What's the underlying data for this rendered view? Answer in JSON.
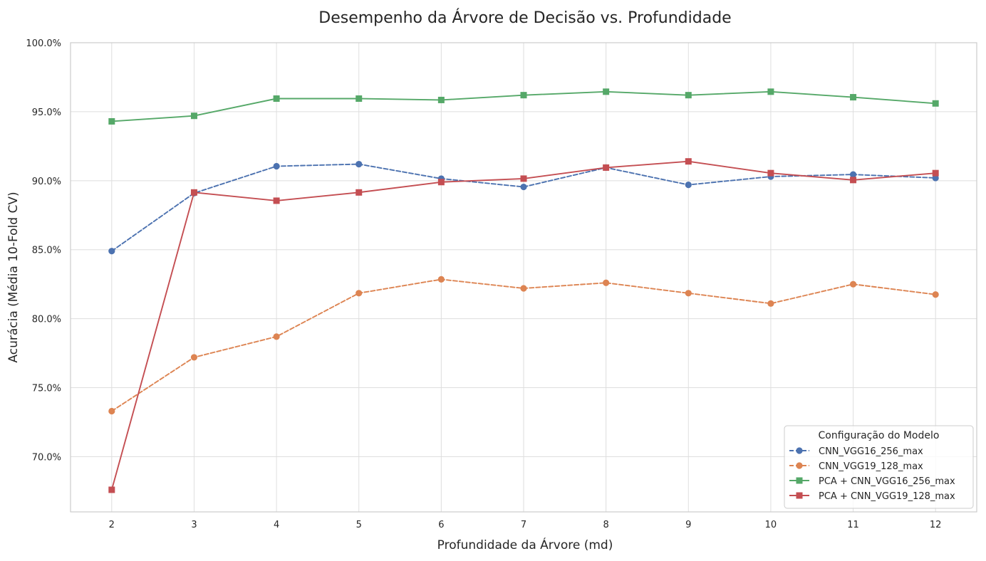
{
  "chart_data": {
    "type": "line",
    "title": "Desempenho da Árvore de Decisão vs. Profundidade",
    "xlabel": "Profundidade da Árvore (md)",
    "ylabel": "Acurácia (Média 10-Fold CV)",
    "x": [
      2,
      3,
      4,
      5,
      6,
      7,
      8,
      9,
      10,
      11,
      12
    ],
    "xlim": [
      1.5,
      12.5
    ],
    "ylim": [
      66.0,
      100.0
    ],
    "x_tick_labels": [
      "2",
      "3",
      "4",
      "5",
      "6",
      "7",
      "8",
      "9",
      "10",
      "11",
      "12"
    ],
    "y_ticks": [
      70,
      75,
      80,
      85,
      90,
      95,
      100
    ],
    "y_tick_labels": [
      "70.0%",
      "75.0%",
      "80.0%",
      "85.0%",
      "90.0%",
      "95.0%",
      "100.0%"
    ],
    "grid": true,
    "legend": {
      "title": "Configuração do Modelo",
      "placement": "lower right"
    },
    "series": [
      {
        "name": "CNN_VGG16_256_max",
        "color": "#4c72b0",
        "line_style": "dashed",
        "marker": "circle",
        "values": [
          84.9,
          89.1,
          91.05,
          91.2,
          90.15,
          89.55,
          90.95,
          89.7,
          90.3,
          90.45,
          90.2
        ]
      },
      {
        "name": "CNN_VGG19_128_max",
        "color": "#dd8452",
        "line_style": "dashed",
        "marker": "circle",
        "values": [
          73.3,
          77.2,
          78.7,
          81.85,
          82.85,
          82.2,
          82.6,
          81.85,
          81.1,
          82.5,
          81.75
        ]
      },
      {
        "name": "PCA + CNN_VGG16_256_max",
        "color": "#55a868",
        "line_style": "solid",
        "marker": "square",
        "values": [
          94.3,
          94.7,
          95.95,
          95.95,
          95.85,
          96.2,
          96.45,
          96.2,
          96.45,
          96.05,
          95.6
        ]
      },
      {
        "name": "PCA + CNN_VGG19_128_max",
        "color": "#c44e52",
        "line_style": "solid",
        "marker": "square",
        "values": [
          67.6,
          89.15,
          88.55,
          89.15,
          89.9,
          90.15,
          90.95,
          91.4,
          90.55,
          90.05,
          90.55
        ]
      }
    ]
  }
}
